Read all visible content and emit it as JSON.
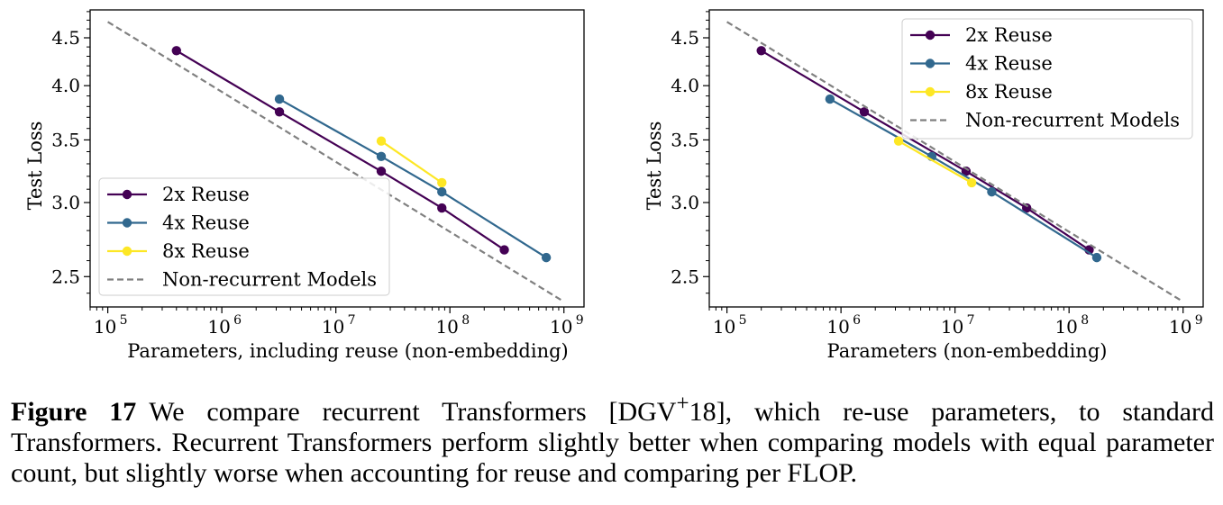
{
  "chart_data": [
    {
      "type": "line",
      "xscale": "log",
      "yscale": "log",
      "xlabel": "Parameters, including reuse (non-embedding)",
      "ylabel": "Test Loss",
      "xlim": [
        70000,
        1500000000
      ],
      "ylim": [
        2.32,
        4.82
      ],
      "xticks": [
        {
          "value": 100000,
          "base": "10",
          "exp": "5"
        },
        {
          "value": 1000000,
          "base": "10",
          "exp": "6"
        },
        {
          "value": 10000000,
          "base": "10",
          "exp": "7"
        },
        {
          "value": 100000000,
          "base": "10",
          "exp": "8"
        },
        {
          "value": 1000000000,
          "base": "10",
          "exp": "9"
        }
      ],
      "yticks": [
        {
          "value": 2.5,
          "label": "2.5"
        },
        {
          "value": 3.0,
          "label": "3.0"
        },
        {
          "value": 3.5,
          "label": "3.5"
        },
        {
          "value": 4.0,
          "label": "4.0"
        },
        {
          "value": 4.5,
          "label": "4.5"
        }
      ],
      "legend": "lower-left",
      "series": [
        {
          "name": "2x Reuse",
          "color": "#440154",
          "style": "solid-marker",
          "x": [
            400000,
            3200000,
            25000000,
            85000000,
            300000000
          ],
          "y": [
            4.36,
            3.75,
            3.24,
            2.96,
            2.67
          ]
        },
        {
          "name": "4x Reuse",
          "color": "#31688e",
          "style": "solid-marker",
          "x": [
            3200000,
            25000000,
            85000000,
            700000000
          ],
          "y": [
            3.87,
            3.36,
            3.08,
            2.62
          ]
        },
        {
          "name": "8x Reuse",
          "color": "#fde725",
          "style": "solid-marker",
          "x": [
            25000000,
            85000000
          ],
          "y": [
            3.49,
            3.15
          ]
        },
        {
          "name": "Non-recurrent Models",
          "color": "#808080",
          "style": "dashed",
          "x": [
            100000,
            1000000000
          ],
          "y": [
            4.68,
            2.35
          ]
        }
      ]
    },
    {
      "type": "line",
      "xscale": "log",
      "yscale": "log",
      "xlabel": "Parameters (non-embedding)",
      "ylabel": "Test Loss",
      "xlim": [
        70000,
        1500000000
      ],
      "ylim": [
        2.32,
        4.82
      ],
      "xticks": [
        {
          "value": 100000,
          "base": "10",
          "exp": "5"
        },
        {
          "value": 1000000,
          "base": "10",
          "exp": "6"
        },
        {
          "value": 10000000,
          "base": "10",
          "exp": "7"
        },
        {
          "value": 100000000,
          "base": "10",
          "exp": "8"
        },
        {
          "value": 1000000000,
          "base": "10",
          "exp": "9"
        }
      ],
      "yticks": [
        {
          "value": 2.5,
          "label": "2.5"
        },
        {
          "value": 3.0,
          "label": "3.0"
        },
        {
          "value": 3.5,
          "label": "3.5"
        },
        {
          "value": 4.0,
          "label": "4.0"
        },
        {
          "value": 4.5,
          "label": "4.5"
        }
      ],
      "legend": "upper-right",
      "series": [
        {
          "name": "2x Reuse",
          "color": "#440154",
          "style": "solid-marker",
          "x": [
            200000,
            1600000,
            12500000,
            42500000,
            150000000
          ],
          "y": [
            4.36,
            3.75,
            3.24,
            2.96,
            2.67
          ]
        },
        {
          "name": "4x Reuse",
          "color": "#31688e",
          "style": "solid-marker",
          "x": [
            800000,
            6250000,
            21000000,
            175000000
          ],
          "y": [
            3.87,
            3.36,
            3.08,
            2.62
          ]
        },
        {
          "name": "8x Reuse",
          "color": "#fde725",
          "style": "solid-marker",
          "x": [
            3200000,
            14000000
          ],
          "y": [
            3.49,
            3.15
          ]
        },
        {
          "name": "Non-recurrent Models",
          "color": "#808080",
          "style": "dashed",
          "x": [
            100000,
            1000000000
          ],
          "y": [
            4.68,
            2.35
          ]
        }
      ]
    }
  ],
  "caption": {
    "label": "Figure 17",
    "text_before": "We compare recurrent Transformers [DGV",
    "superscript": "+",
    "text_after": "18], which re-use parameters, to standard Transformers. Recurrent Transformers perform slightly better when comparing models with equal parameter count, but slightly worse when accounting for reuse and comparing per FLOP."
  }
}
